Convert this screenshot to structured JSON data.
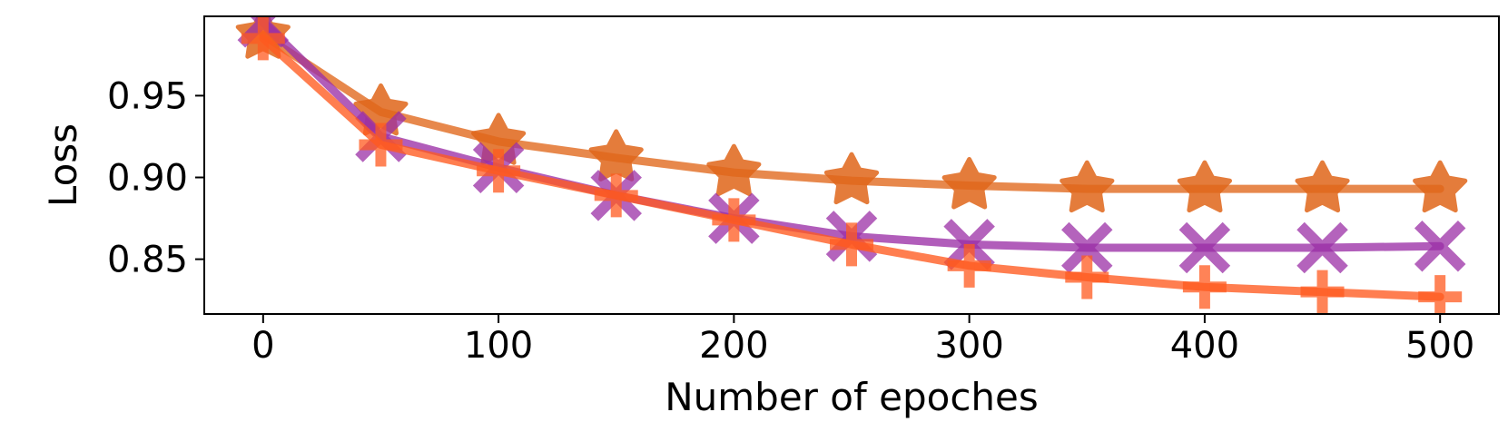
{
  "chart_data": {
    "type": "line",
    "title": "",
    "xlabel": "Number of epoches",
    "ylabel": "Loss",
    "xlim": [
      -25,
      525
    ],
    "ylim": [
      0.8165,
      0.9985
    ],
    "xticks": [
      0,
      100,
      200,
      300,
      400,
      500
    ],
    "xtick_labels": [
      "0",
      "100",
      "200",
      "300",
      "400",
      "500"
    ],
    "yticks": [
      0.85,
      0.9,
      0.95
    ],
    "ytick_labels": [
      "0.85",
      "0.90",
      "0.95"
    ],
    "grid": false,
    "legend": false,
    "x": [
      0,
      50,
      100,
      150,
      200,
      250,
      300,
      350,
      400,
      450,
      500
    ],
    "series": [
      {
        "marker": "star",
        "color": "#e0661a",
        "values": [
          0.987,
          0.94,
          0.922,
          0.912,
          0.903,
          0.898,
          0.895,
          0.893,
          0.893,
          0.893,
          0.893
        ]
      },
      {
        "marker": "x",
        "color": "#9b2fa6",
        "values": [
          0.995,
          0.925,
          0.906,
          0.889,
          0.875,
          0.864,
          0.859,
          0.857,
          0.857,
          0.857,
          0.858
        ]
      },
      {
        "marker": "plus",
        "color": "#ff5a1f",
        "values": [
          0.985,
          0.92,
          0.904,
          0.889,
          0.874,
          0.859,
          0.846,
          0.839,
          0.833,
          0.83,
          0.827
        ]
      }
    ]
  }
}
